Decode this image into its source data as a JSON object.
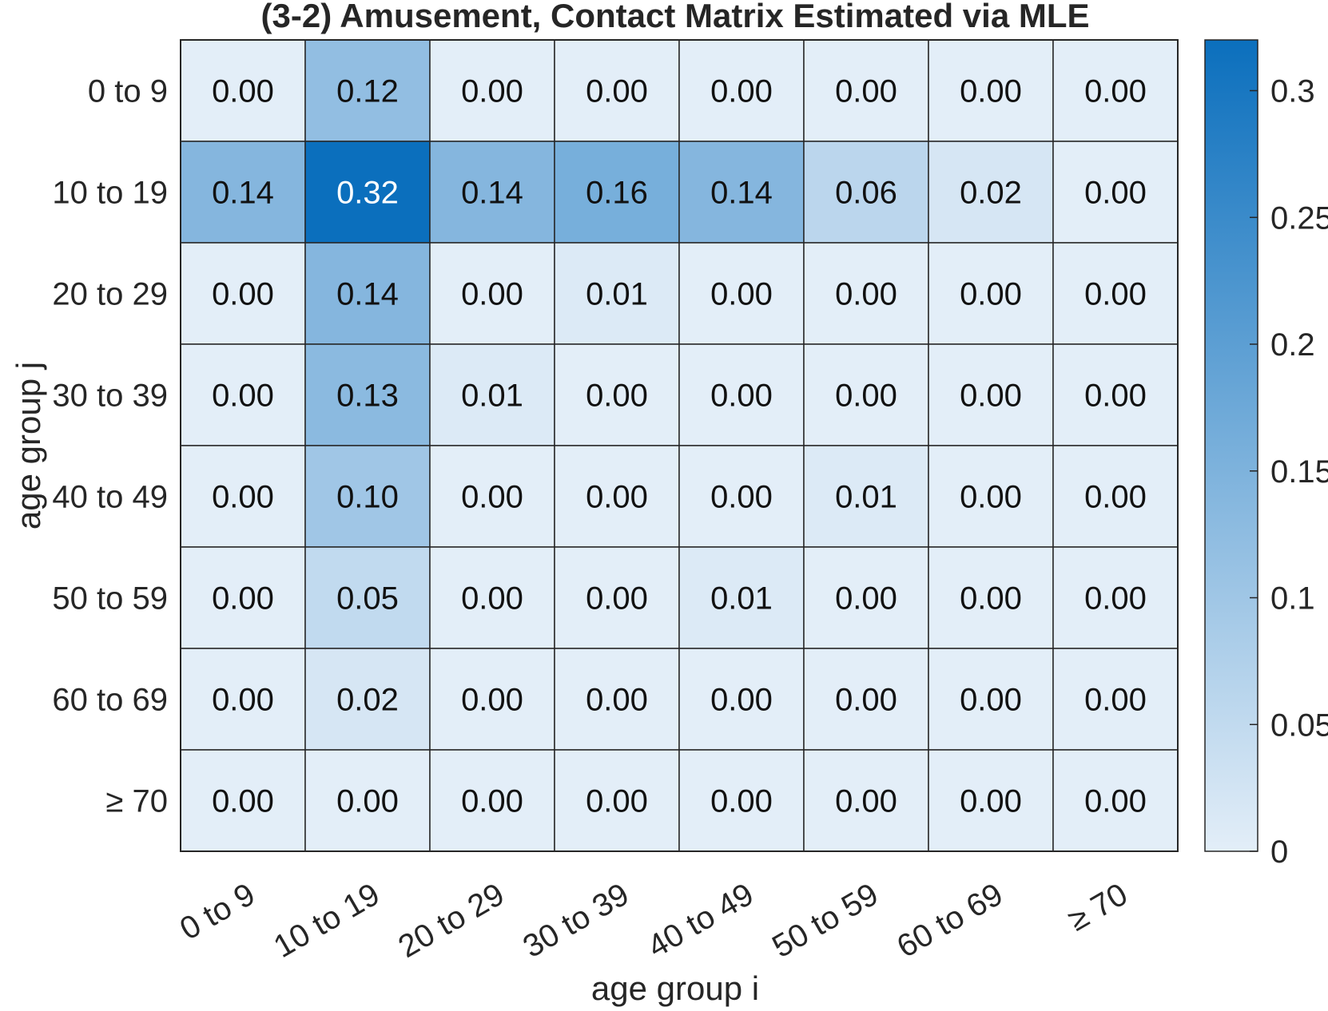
{
  "chart_data": {
    "type": "heatmap",
    "title": "(3-2) Amusement, Contact Matrix Estimated via MLE",
    "xlabel": "age group i",
    "ylabel": "age group j",
    "x_categories": [
      "0 to 9",
      "10 to 19",
      "20 to 29",
      "30 to 39",
      "40 to 49",
      "50 to 59",
      "60 to 69",
      "≥ 70"
    ],
    "y_categories": [
      "0 to 9",
      "10 to 19",
      "20 to 29",
      "30 to 39",
      "40 to 49",
      "50 to 59",
      "60 to 69",
      "≥ 70"
    ],
    "values": [
      [
        "0.00",
        "0.12",
        "0.00",
        "0.00",
        "0.00",
        "0.00",
        "0.00",
        "0.00"
      ],
      [
        "0.14",
        "0.32",
        "0.14",
        "0.16",
        "0.14",
        "0.06",
        "0.02",
        "0.00"
      ],
      [
        "0.00",
        "0.14",
        "0.00",
        "0.01",
        "0.00",
        "0.00",
        "0.00",
        "0.00"
      ],
      [
        "0.00",
        "0.13",
        "0.01",
        "0.00",
        "0.00",
        "0.00",
        "0.00",
        "0.00"
      ],
      [
        "0.00",
        "0.10",
        "0.00",
        "0.00",
        "0.00",
        "0.01",
        "0.00",
        "0.00"
      ],
      [
        "0.00",
        "0.05",
        "0.00",
        "0.00",
        "0.01",
        "0.00",
        "0.00",
        "0.00"
      ],
      [
        "0.00",
        "0.02",
        "0.00",
        "0.00",
        "0.00",
        "0.00",
        "0.00",
        "0.00"
      ],
      [
        "0.00",
        "0.00",
        "0.00",
        "0.00",
        "0.00",
        "0.00",
        "0.00",
        "0.00"
      ]
    ],
    "colorbar": {
      "range": [
        0,
        0.32
      ],
      "ticks": [
        0,
        0.05,
        0.1,
        0.15,
        0.2,
        0.25,
        0.3
      ],
      "tick_labels": [
        "0",
        "0.05",
        "0.1",
        "0.15",
        "0.2",
        "0.25",
        "0.3"
      ],
      "color_low": "#e3eef8",
      "color_high": "#0b6fbd"
    },
    "grid": true,
    "legend": "colorbar-right"
  }
}
